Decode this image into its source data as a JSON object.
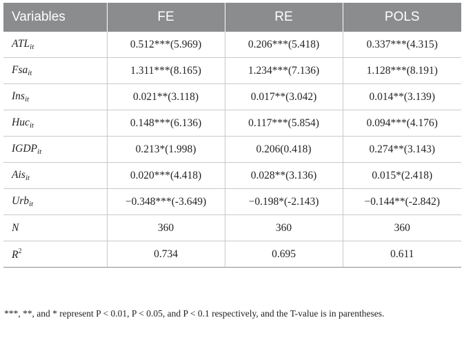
{
  "header": {
    "variables": "Variables",
    "fe": "FE",
    "re": "RE",
    "pols": "POLS"
  },
  "rows": [
    {
      "name": "ATL",
      "subscript": "it",
      "fe": "0.512***(5.969)",
      "re": "0.206***(5.418)",
      "pols": "0.337***(4.315)"
    },
    {
      "name": "Fsa",
      "subscript": "it",
      "fe": "1.311***(8.165)",
      "re": "1.234***(7.136)",
      "pols": "1.128***(8.191)"
    },
    {
      "name": "Ins",
      "subscript": "it",
      "fe": "0.021**(3.118)",
      "re": "0.017**(3.042)",
      "pols": "0.014**(3.139)"
    },
    {
      "name": "Huc",
      "subscript": "it",
      "fe": "0.148***(6.136)",
      "re": "0.117***(5.854)",
      "pols": "0.094***(4.176)"
    },
    {
      "name": "IGDP",
      "subscript": "it",
      "fe": "0.213*(1.998)",
      "re": "0.206(0.418)",
      "pols": "0.274**(3.143)"
    },
    {
      "name": "Ais",
      "subscript": "it",
      "fe": "0.020***(4.418)",
      "re": "0.028**(3.136)",
      "pols": "0.015*(2.418)"
    },
    {
      "name": "Urb",
      "subscript": "it",
      "fe": "−0.348***(-3.649)",
      "re": "−0.198*(-2.143)",
      "pols": "−0.144**(-2.842)"
    },
    {
      "name": "N",
      "fe": "360",
      "re": "360",
      "pols": "360"
    },
    {
      "name": "R",
      "superscript": "2",
      "fe": "0.734",
      "re": "0.695",
      "pols": "0.611"
    }
  ],
  "footnote": "***, **, and * represent P < 0.01, P < 0.05, and P < 0.1 respectively, and the T-value is in parentheses."
}
